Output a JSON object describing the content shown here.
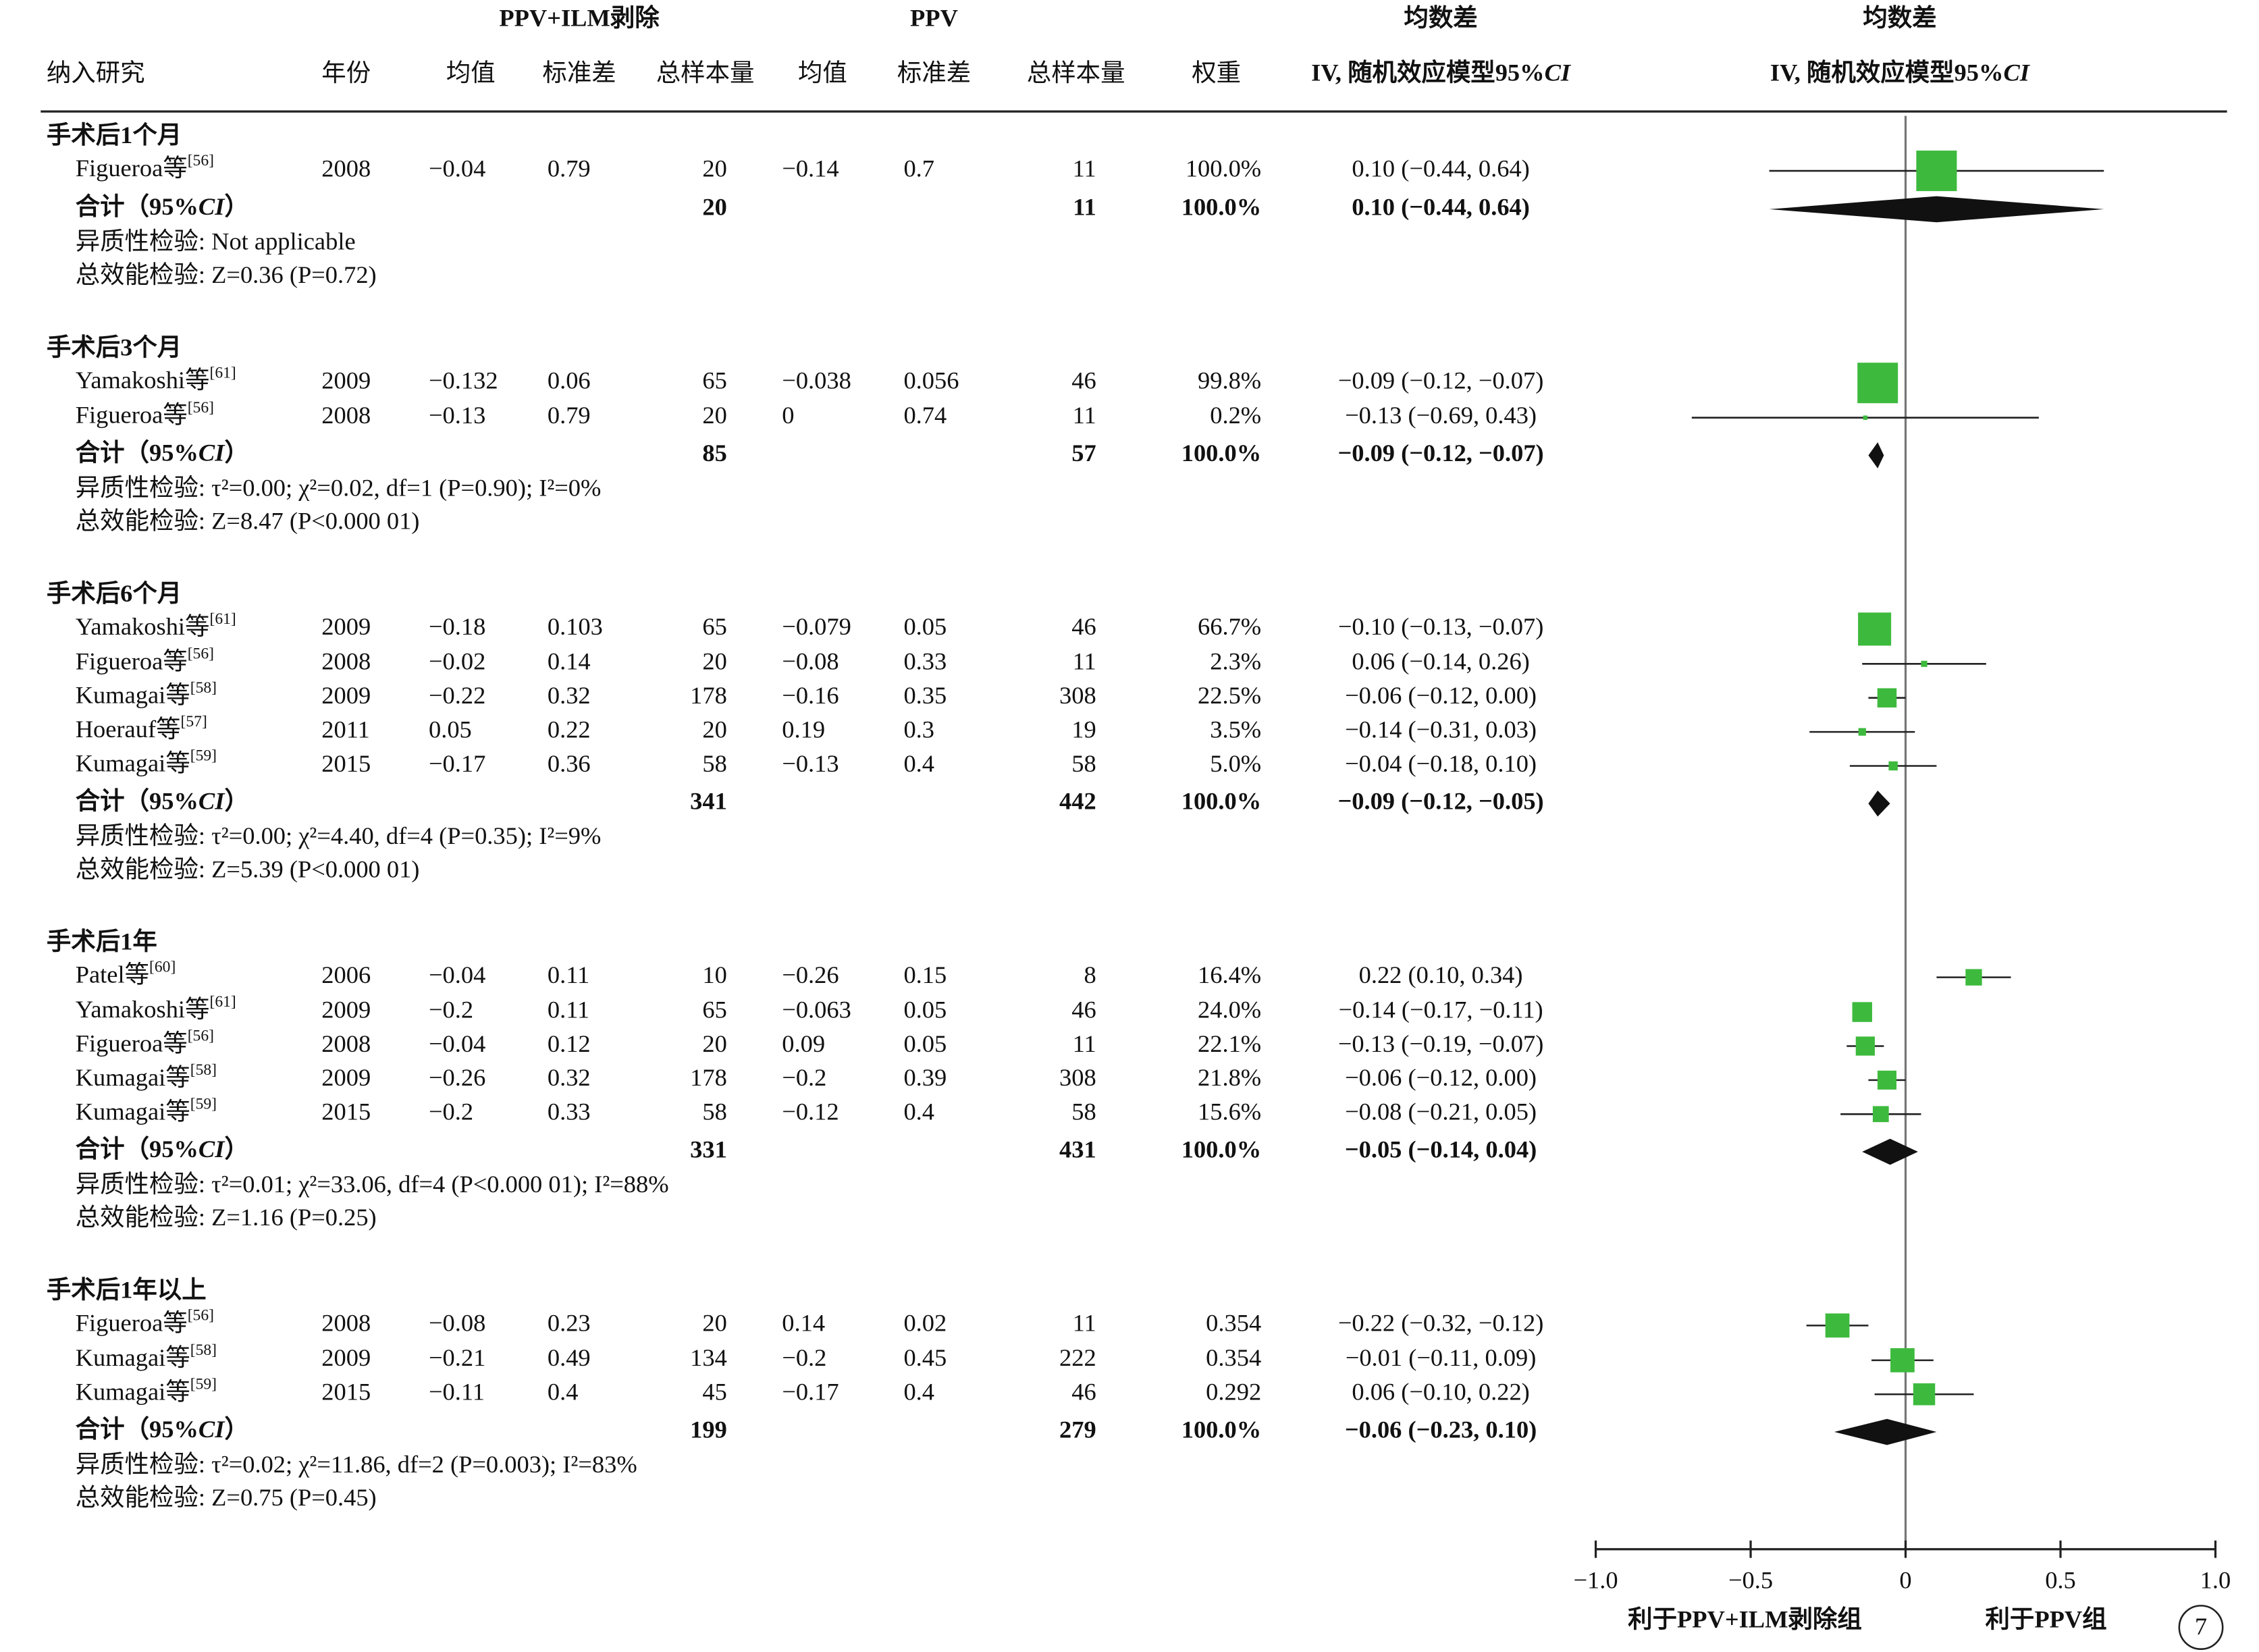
{
  "chart_data": {
    "type": "forest",
    "header": {
      "groups": [
        "PPV+ILM剥除",
        "PPV",
        "均数差",
        "均数差"
      ],
      "columns": [
        "纳入研究",
        "年份",
        "均值",
        "标准差",
        "总样本量",
        "均值",
        "标准差",
        "总样本量",
        "权重"
      ],
      "ci_header": [
        "IV, 随机效应模型95%",
        "CI"
      ],
      "plot_header": [
        "IV, 随机效应模型95%",
        "CI"
      ]
    },
    "subgroups": [
      {
        "title": "手术后1个月",
        "rows": [
          {
            "study": "Figueroa等",
            "ref": "[56]",
            "year": "2008",
            "mean1": "−0.04",
            "sd1": "0.79",
            "n1": "20",
            "mean2": "−0.14",
            "sd2": "0.7",
            "n2": "11",
            "weight": 100.0,
            "weight_label": "100.0%",
            "md": 0.1,
            "ci": [
              -0.44,
              0.64
            ],
            "ci_label": "0.10 (−0.44, 0.64)"
          }
        ],
        "total": {
          "label_parts": [
            "合计（95%",
            "CI",
            "）"
          ],
          "n1": "20",
          "n2": "11",
          "weight_label": "100.0%",
          "md": 0.1,
          "ci": [
            -0.44,
            0.64
          ],
          "ci_label": "0.10 (−0.44, 0.64)"
        },
        "heterogeneity": "异质性检验: Not applicable",
        "overall": "总效能检验: Z=0.36 (P=0.72)"
      },
      {
        "title": "手术后3个月",
        "rows": [
          {
            "study": "Yamakoshi等",
            "ref": "[61]",
            "year": "2009",
            "mean1": "−0.132",
            "sd1": "0.06",
            "n1": "65",
            "mean2": "−0.038",
            "sd2": "0.056",
            "n2": "46",
            "weight": 99.8,
            "weight_label": "99.8%",
            "md": -0.09,
            "ci": [
              -0.12,
              -0.07
            ],
            "ci_label": "−0.09 (−0.12, −0.07)"
          },
          {
            "study": "Figueroa等",
            "ref": "[56]",
            "year": "2008",
            "mean1": "−0.13",
            "sd1": "0.79",
            "n1": "20",
            "mean2": "0",
            "sd2": "0.74",
            "n2": "11",
            "weight": 0.2,
            "weight_label": "0.2%",
            "md": -0.13,
            "ci": [
              -0.69,
              0.43
            ],
            "ci_label": "−0.13 (−0.69, 0.43)"
          }
        ],
        "total": {
          "label_parts": [
            "合计（95%",
            "CI",
            "）"
          ],
          "n1": "85",
          "n2": "57",
          "weight_label": "100.0%",
          "md": -0.09,
          "ci": [
            -0.12,
            -0.07
          ],
          "ci_label": "−0.09 (−0.12, −0.07)"
        },
        "heterogeneity": "异质性检验: τ²=0.00; χ²=0.02, df=1 (P=0.90); I²=0%",
        "overall": "总效能检验: Z=8.47 (P<0.000 01)"
      },
      {
        "title": "手术后6个月",
        "rows": [
          {
            "study": "Yamakoshi等",
            "ref": "[61]",
            "year": "2009",
            "mean1": "−0.18",
            "sd1": "0.103",
            "n1": "65",
            "mean2": "−0.079",
            "sd2": "0.05",
            "n2": "46",
            "weight": 66.7,
            "weight_label": "66.7%",
            "md": -0.1,
            "ci": [
              -0.13,
              -0.07
            ],
            "ci_label": "−0.10 (−0.13, −0.07)"
          },
          {
            "study": "Figueroa等",
            "ref": "[56]",
            "year": "2008",
            "mean1": "−0.02",
            "sd1": "0.14",
            "n1": "20",
            "mean2": "−0.08",
            "sd2": "0.33",
            "n2": "11",
            "weight": 2.3,
            "weight_label": "2.3%",
            "md": 0.06,
            "ci": [
              -0.14,
              0.26
            ],
            "ci_label": "0.06 (−0.14, 0.26)"
          },
          {
            "study": "Kumagai等",
            "ref": "[58]",
            "year": "2009",
            "mean1": "−0.22",
            "sd1": "0.32",
            "n1": "178",
            "mean2": "−0.16",
            "sd2": "0.35",
            "n2": "308",
            "weight": 22.5,
            "weight_label": "22.5%",
            "md": -0.06,
            "ci": [
              -0.12,
              0.0
            ],
            "ci_label": "−0.06 (−0.12, 0.00)"
          },
          {
            "study": "Hoerauf等",
            "ref": "[57]",
            "year": "2011",
            "mean1": "0.05",
            "sd1": "0.22",
            "n1": "20",
            "mean2": "0.19",
            "sd2": "0.3",
            "n2": "19",
            "weight": 3.5,
            "weight_label": "3.5%",
            "md": -0.14,
            "ci": [
              -0.31,
              0.03
            ],
            "ci_label": "−0.14 (−0.31, 0.03)"
          },
          {
            "study": "Kumagai等",
            "ref": "[59]",
            "year": "2015",
            "mean1": "−0.17",
            "sd1": "0.36",
            "n1": "58",
            "mean2": "−0.13",
            "sd2": "0.4",
            "n2": "58",
            "weight": 5.0,
            "weight_label": "5.0%",
            "md": -0.04,
            "ci": [
              -0.18,
              0.1
            ],
            "ci_label": "−0.04 (−0.18, 0.10)"
          }
        ],
        "total": {
          "label_parts": [
            "合计（95%",
            "CI",
            "）"
          ],
          "n1": "341",
          "n2": "442",
          "weight_label": "100.0%",
          "md": -0.09,
          "ci": [
            -0.12,
            -0.05
          ],
          "ci_label": "−0.09 (−0.12, −0.05)"
        },
        "heterogeneity": "异质性检验: τ²=0.00; χ²=4.40, df=4 (P=0.35); I²=9%",
        "overall": "总效能检验: Z=5.39 (P<0.000 01)"
      },
      {
        "title": "手术后1年",
        "rows": [
          {
            "study": "Patel等",
            "ref": "[60]",
            "year": "2006",
            "mean1": "−0.04",
            "sd1": "0.11",
            "n1": "10",
            "mean2": "−0.26",
            "sd2": "0.15",
            "n2": "8",
            "weight": 16.4,
            "weight_label": "16.4%",
            "md": 0.22,
            "ci": [
              0.1,
              0.34
            ],
            "ci_label": "0.22 (0.10, 0.34)"
          },
          {
            "study": "Yamakoshi等",
            "ref": "[61]",
            "year": "2009",
            "mean1": "−0.2",
            "sd1": "0.11",
            "n1": "65",
            "mean2": "−0.063",
            "sd2": "0.05",
            "n2": "46",
            "weight": 24.0,
            "weight_label": "24.0%",
            "md": -0.14,
            "ci": [
              -0.17,
              -0.11
            ],
            "ci_label": "−0.14 (−0.17, −0.11)"
          },
          {
            "study": "Figueroa等",
            "ref": "[56]",
            "year": "2008",
            "mean1": "−0.04",
            "sd1": "0.12",
            "n1": "20",
            "mean2": "0.09",
            "sd2": "0.05",
            "n2": "11",
            "weight": 22.1,
            "weight_label": "22.1%",
            "md": -0.13,
            "ci": [
              -0.19,
              -0.07
            ],
            "ci_label": "−0.13 (−0.19, −0.07)"
          },
          {
            "study": "Kumagai等",
            "ref": "[58]",
            "year": "2009",
            "mean1": "−0.26",
            "sd1": "0.32",
            "n1": "178",
            "mean2": "−0.2",
            "sd2": "0.39",
            "n2": "308",
            "weight": 21.8,
            "weight_label": "21.8%",
            "md": -0.06,
            "ci": [
              -0.12,
              0.0
            ],
            "ci_label": "−0.06 (−0.12, 0.00)"
          },
          {
            "study": "Kumagai等",
            "ref": "[59]",
            "year": "2015",
            "mean1": "−0.2",
            "sd1": "0.33",
            "n1": "58",
            "mean2": "−0.12",
            "sd2": "0.4",
            "n2": "58",
            "weight": 15.6,
            "weight_label": "15.6%",
            "md": -0.08,
            "ci": [
              -0.21,
              0.05
            ],
            "ci_label": "−0.08 (−0.21, 0.05)"
          }
        ],
        "total": {
          "label_parts": [
            "合计（95%",
            "CI",
            "）"
          ],
          "n1": "331",
          "n2": "431",
          "weight_label": "100.0%",
          "md": -0.05,
          "ci": [
            -0.14,
            0.04
          ],
          "ci_label": "−0.05 (−0.14, 0.04)"
        },
        "heterogeneity": "异质性检验: τ²=0.01; χ²=33.06, df=4 (P<0.000 01); I²=88%",
        "overall": "总效能检验: Z=1.16 (P=0.25)"
      },
      {
        "title": "手术后1年以上",
        "rows": [
          {
            "study": "Figueroa等",
            "ref": "[56]",
            "year": "2008",
            "mean1": "−0.08",
            "sd1": "0.23",
            "n1": "20",
            "mean2": "0.14",
            "sd2": "0.02",
            "n2": "11",
            "weight": 0.354,
            "md": -0.22,
            "ci": [
              -0.32,
              -0.12
            ],
            "ci_label": "−0.22 (−0.32, −0.12)"
          },
          {
            "study": "Kumagai等",
            "ref": "[58]",
            "year": "2009",
            "mean1": "−0.21",
            "sd1": "0.49",
            "n1": "134",
            "mean2": "−0.2",
            "sd2": "0.45",
            "n2": "222",
            "weight": 0.354,
            "md": -0.01,
            "ci": [
              -0.11,
              0.09
            ],
            "ci_label": "−0.01 (−0.11, 0.09)"
          },
          {
            "study": "Kumagai等",
            "ref": "[59]",
            "year": "2015",
            "mean1": "−0.11",
            "sd1": "0.4",
            "n1": "45",
            "mean2": "−0.17",
            "sd2": "0.4",
            "n2": "46",
            "weight": 0.292,
            "md": 0.06,
            "ci": [
              -0.1,
              0.22
            ],
            "ci_label": "0.06 (−0.10, 0.22)"
          }
        ],
        "total": {
          "label_parts": [
            "合计（95%",
            "CI",
            "）"
          ],
          "n1": "199",
          "n2": "279",
          "weight_label": "100.0%",
          "md": -0.06,
          "ci": [
            -0.23,
            0.1
          ],
          "ci_label": "−0.06 (−0.23, 0.10)"
        },
        "heterogeneity": "异质性检验: τ²=0.02; χ²=11.86, df=2 (P=0.003); I²=83%",
        "overall": "总效能检验: Z=0.75 (P=0.45)"
      }
    ],
    "xlim": [
      -1,
      1
    ],
    "xticks": [
      {
        "value": -1,
        "label": "−1.0"
      },
      {
        "value": -0.5,
        "label": "−0.5"
      },
      0,
      0.5,
      {
        "value": 1,
        "label": "1.0"
      }
    ],
    "xlabel_left": "利于PPV+ILM剥除组",
    "xlabel_right": "利于PPV组",
    "square_color": "#3dba3d",
    "figure_number": "7"
  }
}
